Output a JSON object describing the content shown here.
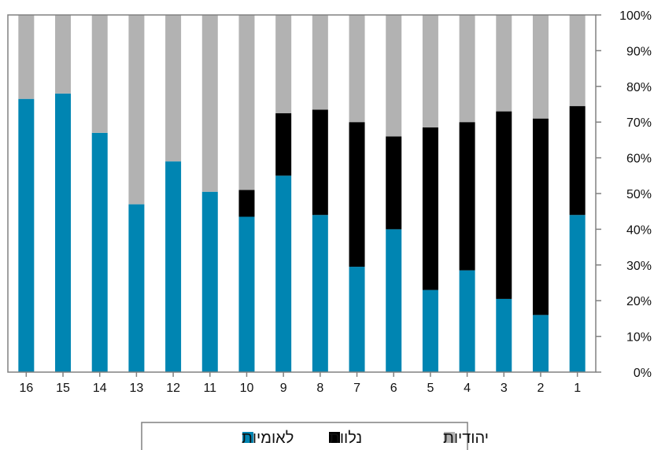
{
  "chart_data": {
    "type": "bar",
    "stacked": true,
    "orientation": "vertical",
    "x_axis_direction": "right-to-left",
    "categories": [
      "1",
      "2",
      "3",
      "4",
      "5",
      "6",
      "7",
      "8",
      "9",
      "10",
      "11",
      "12",
      "13",
      "14",
      "15",
      "16"
    ],
    "series": [
      {
        "name": "לאומיות",
        "color": "#0085b2",
        "values": [
          44,
          16,
          20.5,
          28.5,
          23,
          40,
          29.5,
          44,
          55,
          43.5,
          50.5,
          59,
          47,
          67,
          78,
          76.5
        ]
      },
      {
        "name": "נלוות",
        "color": "#000000",
        "values": [
          30.5,
          55,
          52.5,
          41.5,
          45.5,
          26,
          40.5,
          29.5,
          17.5,
          7.5,
          0,
          0,
          0,
          0,
          0,
          0
        ]
      },
      {
        "name": "יהודיות",
        "color": "#b2b2b2",
        "values": [
          25.5,
          29,
          27,
          30,
          31.5,
          34,
          30,
          26.5,
          27.5,
          49,
          49.5,
          41,
          53,
          33,
          22,
          23.5
        ]
      }
    ],
    "ylim": [
      0,
      100
    ],
    "y_ticks": [
      "0%",
      "10%",
      "20%",
      "30%",
      "40%",
      "50%",
      "60%",
      "70%",
      "80%",
      "90%",
      "100%"
    ],
    "y_axis_position": "right",
    "grid": false,
    "legend": {
      "position": "bottom-center",
      "order": [
        "יהודיות",
        "נלוות",
        "לאומיות"
      ]
    }
  }
}
